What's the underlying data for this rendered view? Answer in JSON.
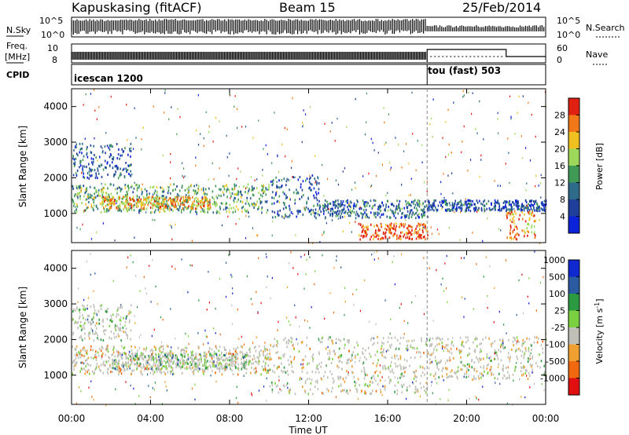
{
  "header": {
    "station": "Kapuskasing (fitACF)",
    "beam": "Beam 15",
    "date": "25/Feb/2014"
  },
  "panels": {
    "nsky_label": "N.Sky",
    "nsky_ticks": [
      "10^5",
      "10^0"
    ],
    "nsky_right_ticks": [
      "10^5",
      "10^0"
    ],
    "nsearch_label": "N.Search",
    "freq_label": "Freq.",
    "freq_unit": "[MHz]",
    "freq_ticks": [
      "10",
      "8"
    ],
    "nave_ticks": [
      "60",
      "0"
    ],
    "nave_label": "Nave",
    "cpid_label": "CPID",
    "cpid_segments": [
      {
        "label": "icescan 1200",
        "start_hour": 0,
        "end_hour": 18
      },
      {
        "label": "tou (fast) 503",
        "start_hour": 18,
        "end_hour": 24
      }
    ]
  },
  "chart_data": [
    {
      "type": "heatmap",
      "quantity": "Power",
      "ylabel": "Slant Range [km]",
      "xlabel": "",
      "xlim": [
        0,
        24
      ],
      "ylim": [
        180,
        4500
      ],
      "yticks": [
        1000,
        2000,
        3000,
        4000
      ],
      "colorbar": {
        "label": "Power [dB]",
        "ticks": [
          "4",
          "8",
          "12",
          "16",
          "20",
          "24",
          "28"
        ],
        "tick_values": [
          4,
          8,
          12,
          16,
          20,
          24,
          28
        ],
        "range": [
          0,
          32
        ],
        "colors": [
          "#0a22d8",
          "#1e3f9a",
          "#2e6a8a",
          "#3f9a55",
          "#9ed85a",
          "#f0c020",
          "#f07818",
          "#e02010"
        ]
      },
      "bands": [
        {
          "t0": 0.0,
          "t1": 10.0,
          "r0": 1050,
          "r1": 1850,
          "level": 0.45
        },
        {
          "t0": 1.5,
          "t1": 7.0,
          "r0": 1150,
          "r1": 1500,
          "level": 0.7
        },
        {
          "t0": 10.0,
          "t1": 12.5,
          "r0": 900,
          "r1": 2100,
          "level": 0.25
        },
        {
          "t0": 12.5,
          "t1": 18.0,
          "r0": 900,
          "r1": 1400,
          "level": 0.3
        },
        {
          "t0": 14.5,
          "t1": 18.0,
          "r0": 300,
          "r1": 750,
          "level": 0.9
        },
        {
          "t0": 18.0,
          "t1": 24.0,
          "r0": 1100,
          "r1": 1400,
          "level": 0.2
        },
        {
          "t0": 22.0,
          "t1": 23.5,
          "r0": 300,
          "r1": 1100,
          "level": 0.8
        },
        {
          "t0": 0.0,
          "t1": 3.0,
          "r0": 2000,
          "r1": 3000,
          "level": 0.25
        }
      ]
    },
    {
      "type": "heatmap",
      "quantity": "Velocity",
      "ylabel": "Slant Range [km]",
      "xlabel": "Time UT",
      "xlim": [
        0,
        24
      ],
      "ylim": [
        180,
        4500
      ],
      "yticks": [
        1000,
        2000,
        3000,
        4000
      ],
      "xticks": [
        "00:00",
        "04:00",
        "08:00",
        "12:00",
        "16:00",
        "20:00",
        "00:00"
      ],
      "xtick_values": [
        0,
        4,
        8,
        12,
        16,
        20,
        24
      ],
      "colorbar": {
        "label": "Velocity [m s^-1]",
        "ticks": [
          "-1000",
          "-500",
          "-100",
          "-25",
          "25",
          "100",
          "500",
          "1000"
        ],
        "colors": [
          "#e01010",
          "#f06810",
          "#f0a030",
          "#c0c0b8",
          "#7ad040",
          "#2c9a40",
          "#2a5aa0",
          "#1028d0"
        ]
      },
      "bands": [
        {
          "t0": 0.0,
          "t1": 10.0,
          "r0": 1050,
          "r1": 1850,
          "level": 0.4
        },
        {
          "t0": 2.0,
          "t1": 9.0,
          "r0": 1200,
          "r1": 1650,
          "level": 0.65
        },
        {
          "t0": 10.0,
          "t1": 18.0,
          "r0": 500,
          "r1": 2100,
          "level": 0.45
        },
        {
          "t0": 18.0,
          "t1": 24.0,
          "r0": 900,
          "r1": 2100,
          "level": 0.45
        },
        {
          "t0": 0.0,
          "t1": 3.0,
          "r0": 2000,
          "r1": 3000,
          "level": 0.55
        }
      ]
    }
  ]
}
